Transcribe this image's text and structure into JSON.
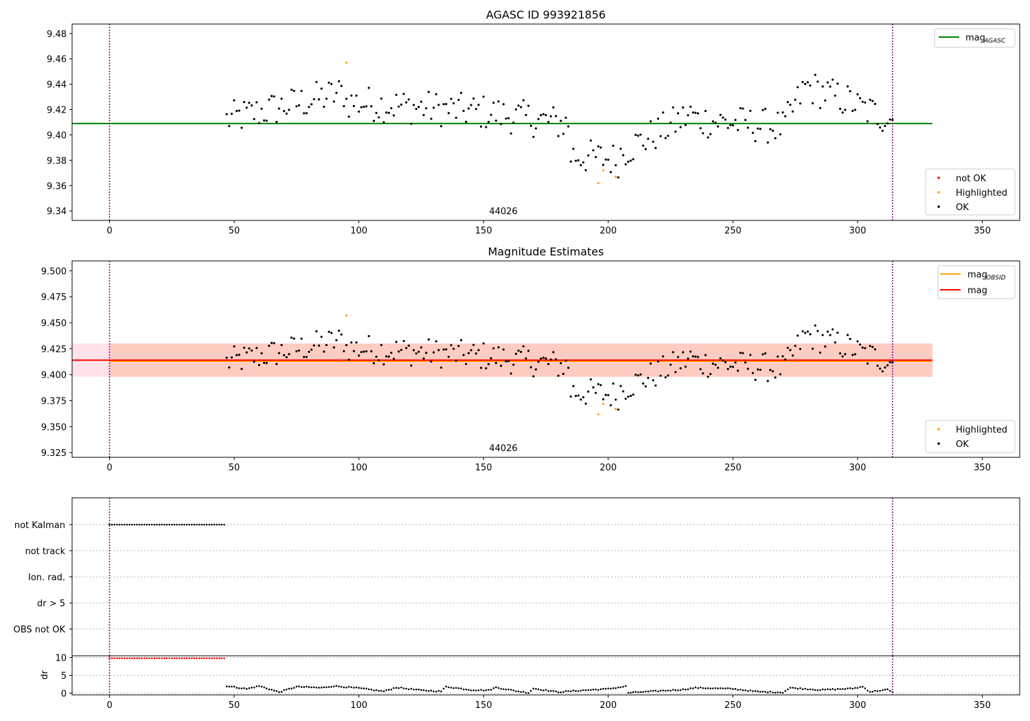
{
  "chart_data": [
    {
      "id": "agasc",
      "type": "scatter",
      "title": "AGASC ID 993921856",
      "xlim": [
        -15,
        365
      ],
      "ylim": [
        9.3325,
        9.4875
      ],
      "x_ticks": [
        0,
        50,
        100,
        150,
        200,
        250,
        300,
        350
      ],
      "y_ticks": [
        9.34,
        9.36,
        9.38,
        9.4,
        9.42,
        9.44,
        9.46,
        9.48
      ],
      "y_tick_labels": [
        "9.34",
        "9.36",
        "9.38",
        "9.40",
        "9.42",
        "9.44",
        "9.46",
        "9.48"
      ],
      "vlines_x": [
        0,
        314
      ],
      "obsid_label": "44026",
      "obsid_label_x": 157,
      "mag_agasc": 9.409,
      "mag_line_x": [
        -15,
        330
      ],
      "legend_lines": [
        {
          "label": "mag",
          "subscript": "AGASC",
          "color": "#008000"
        }
      ],
      "legend_markers": [
        {
          "label": "not OK",
          "color": "#ff0000"
        },
        {
          "label": "Highlighted",
          "color": "#ffa500"
        },
        {
          "label": "OK",
          "color": "#000000"
        }
      ],
      "legend_lines_position": "top-right",
      "legend_markers_position": "bottom-right"
    },
    {
      "id": "estimates",
      "type": "scatter",
      "title": "Magnitude Estimates",
      "xlim": [
        -15,
        365
      ],
      "ylim": [
        9.3205,
        9.5095
      ],
      "x_ticks": [
        0,
        50,
        100,
        150,
        200,
        250,
        300,
        350
      ],
      "y_ticks": [
        9.325,
        9.35,
        9.375,
        9.4,
        9.425,
        9.45,
        9.475,
        9.5
      ],
      "y_tick_labels": [
        "9.325",
        "9.350",
        "9.375",
        "9.400",
        "9.425",
        "9.450",
        "9.475",
        "9.500"
      ],
      "vlines_x": [
        0,
        314
      ],
      "obsid_label": "44026",
      "obsid_label_x": 157,
      "mag": 9.414,
      "mag_obsid": 9.413,
      "mag_band": [
        9.398,
        9.43
      ],
      "mag_obsid_band": [
        9.398,
        9.43
      ],
      "obsid_band_x": [
        0,
        330
      ],
      "mag_line_x": [
        -15,
        330
      ],
      "legend_lines": [
        {
          "label": "mag",
          "subscript": "OBSID",
          "color": "#ffa500"
        },
        {
          "label": "mag",
          "subscript": "",
          "color": "#ff0000"
        }
      ],
      "legend_markers": [
        {
          "label": "Highlighted",
          "color": "#ffa500"
        },
        {
          "label": "OK",
          "color": "#000000"
        }
      ],
      "legend_lines_position": "top-right",
      "legend_markers_position": "bottom-right"
    },
    {
      "id": "flags",
      "type": "scatter",
      "xlim": [
        -15,
        365
      ],
      "categories": [
        "not Kalman",
        "not track",
        "Ion. rad.",
        "dr > 5",
        "OBS not OK"
      ],
      "vlines_x": [
        0,
        314
      ],
      "not_kalman_x_range": [
        0,
        46
      ],
      "note": ""
    },
    {
      "id": "dr",
      "type": "scatter",
      "xlim": [
        -15,
        365
      ],
      "ylim": [
        -0.5,
        10.5
      ],
      "ylabel": "dr",
      "x_ticks": [
        0,
        50,
        100,
        150,
        200,
        250,
        300,
        350
      ],
      "y_ticks": [
        0,
        5,
        10
      ],
      "vlines_x": [
        0,
        314
      ],
      "dr_capped_value": 9.8,
      "dr_capped_x_range": [
        0,
        46
      ],
      "dr_profile": [
        [
          47,
          2.0
        ],
        [
          55,
          1.2
        ],
        [
          60,
          2.0
        ],
        [
          68,
          0.3
        ],
        [
          75,
          1.8
        ],
        [
          85,
          1.5
        ],
        [
          90,
          2.0
        ],
        [
          100,
          1.4
        ],
        [
          110,
          0.5
        ],
        [
          115,
          1.6
        ],
        [
          125,
          0.8
        ],
        [
          133,
          0.5
        ],
        [
          135,
          1.8
        ],
        [
          145,
          0.9
        ],
        [
          152,
          0.8
        ],
        [
          155,
          1.6
        ],
        [
          163,
          0.6
        ],
        [
          168,
          0.1
        ],
        [
          170,
          1.3
        ],
        [
          180,
          0.3
        ],
        [
          190,
          0.8
        ],
        [
          200,
          1.2
        ],
        [
          207,
          1.9
        ],
        [
          208,
          0.1
        ],
        [
          220,
          0.6
        ],
        [
          230,
          1.0
        ],
        [
          235,
          1.5
        ],
        [
          250,
          1.2
        ],
        [
          260,
          0.4
        ],
        [
          270,
          0.2
        ],
        [
          273,
          1.5
        ],
        [
          285,
          0.9
        ],
        [
          298,
          1.3
        ],
        [
          302,
          1.8
        ],
        [
          305,
          0.4
        ],
        [
          312,
          1.0
        ],
        [
          314,
          0.2
        ]
      ]
    }
  ],
  "colors": {
    "ok": "#000000",
    "not_ok": "#ff0000",
    "highlighted": "#ffa500",
    "mag_agasc_line": "#008000",
    "mag_line": "#ff0000",
    "mag_obsid_line": "#ffa500",
    "obsid_vline": "#800080",
    "mag_band_fill": "#ffc0cb",
    "obsid_band_fill": "#ffa07a"
  }
}
